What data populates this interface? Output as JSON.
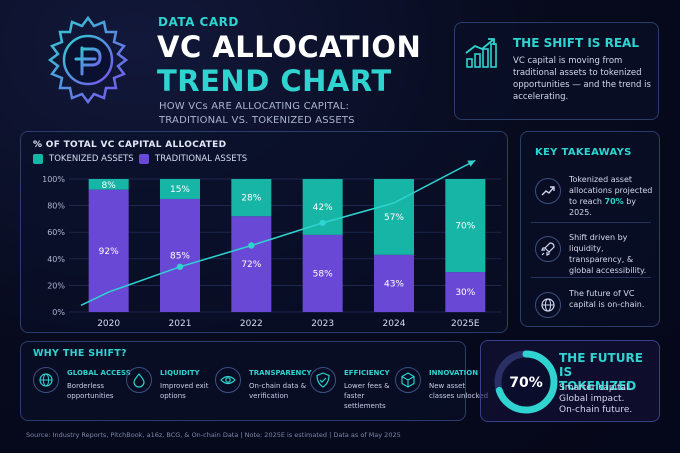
{
  "header": {
    "eyebrow": "DATA CARD",
    "title_line1": "VC ALLOCATION",
    "title_line2": "TREND CHART",
    "subtitle_line1": "HOW VCs ARE ALLOCATING CAPITAL:",
    "subtitle_line2": "TRADITIONAL VS. TOKENIZED ASSETS"
  },
  "shift_panel": {
    "title": "THE SHIFT IS REAL",
    "text": "VC capital is moving from traditional assets to tokenized opportunities — and the trend is accelerating."
  },
  "chart_data": {
    "type": "bar",
    "stacked": true,
    "title": "% OF TOTAL VC CAPITAL ALLOCATED",
    "categories": [
      "2020",
      "2021",
      "2022",
      "2023",
      "2024",
      "2025E"
    ],
    "series": [
      {
        "name": "TRADITIONAL ASSETS",
        "values": [
          92,
          85,
          72,
          58,
          43,
          30
        ],
        "labels": [
          "92%",
          "85%",
          "72%",
          "58%",
          "43%",
          "30%"
        ],
        "color": "#6a48d6"
      },
      {
        "name": "TOKENIZED ASSETS",
        "values": [
          8,
          15,
          28,
          42,
          57,
          70
        ],
        "labels": [
          "8%",
          "15%",
          "28%",
          "42%",
          "57%",
          "70%"
        ],
        "color": "#17b5a6"
      }
    ],
    "trend_line": {
      "color": "#2fd3cf",
      "values": [
        15,
        34,
        50,
        67,
        82,
        100
      ]
    },
    "ylim": [
      0,
      100
    ],
    "yticks": [
      "0%",
      "20%",
      "40%",
      "60%",
      "80%",
      "100%"
    ],
    "yticks_values": [
      0,
      20,
      40,
      60,
      80,
      100
    ],
    "grid": true,
    "legend_placement": "top-left"
  },
  "takeaways": {
    "heading": "KEY TAKEAWAYS",
    "items": [
      {
        "icon": "trend-up-icon",
        "pre": "Tokenized asset allocations projected to reach ",
        "highlight": "70%",
        "post": " by 2025."
      },
      {
        "icon": "rocket-icon",
        "pre": "Shift driven by liquidity, transparency, & global accessibility.",
        "highlight": "",
        "post": ""
      },
      {
        "icon": "globe-icon",
        "pre": "The future of VC capital is on-chain.",
        "highlight": "",
        "post": ""
      }
    ]
  },
  "why": {
    "heading": "WHY THE SHIFT?",
    "items": [
      {
        "icon": "globe-icon",
        "label": "GLOBAL ACCESS",
        "desc": "Borderless opportunities"
      },
      {
        "icon": "drop-icon",
        "label": "LIQUIDITY",
        "desc": "Improved exit options"
      },
      {
        "icon": "eye-icon",
        "label": "TRANSPARENCY",
        "desc": "On-chain data & verification"
      },
      {
        "icon": "shield-check-icon",
        "label": "EFFICIENCY",
        "desc": "Lower fees & faster settlements"
      },
      {
        "icon": "cube-icon",
        "label": "INNOVATION",
        "desc": "New asset classes unlocked"
      }
    ]
  },
  "future": {
    "percent_label": "70%",
    "percent_value": 0.7,
    "title_line1": "THE FUTURE IS",
    "title_line2": "TOKENIZED",
    "line1": "Smarter capital.",
    "line2": "Global impact.",
    "line3": "On-chain future."
  },
  "footer": "Source: Industry Reports, PitchBook, a16z, BCG, & On-chain Data   |   Note: 2025E is estimated   |   Data as of May 2025",
  "colors": {
    "accent": "#2fd3cf",
    "traditional": "#6a48d6",
    "tokenized": "#17b5a6",
    "ring_track": "#2a2f66"
  }
}
